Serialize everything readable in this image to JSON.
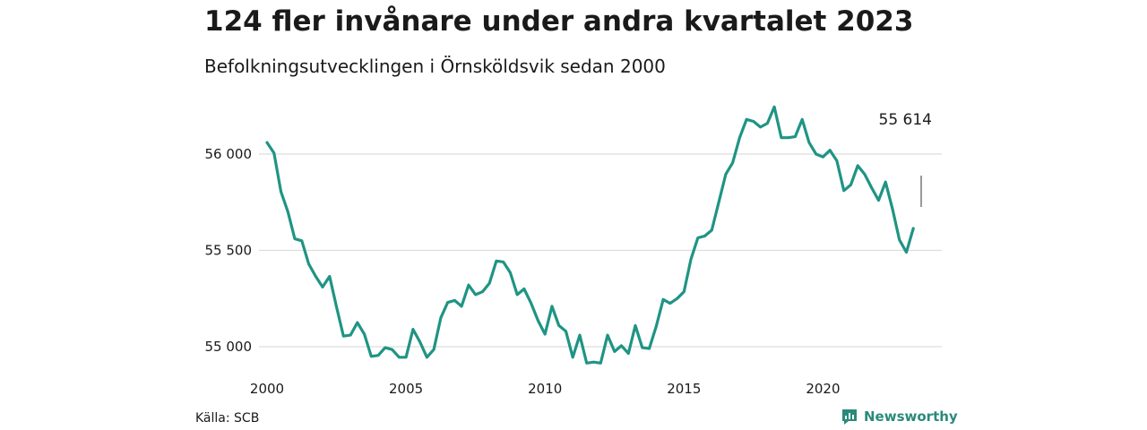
{
  "header": {
    "title": "124 fler invånare under andra kvartalet 2023",
    "subtitle": "Befolkningsutvecklingen i Örnsköldsvik sedan 2000"
  },
  "footer": {
    "source": "Källa: SCB",
    "brand": "Newsworthy"
  },
  "colors": {
    "line": "#1f9484",
    "grid": "#dddddd",
    "brand": "#2a8a7a"
  },
  "icons": {
    "brand": "newsworthy-logo-icon"
  },
  "chart_data": {
    "type": "line",
    "title": "124 fler invånare under andra kvartalet 2023",
    "subtitle": "Befolkningsutvecklingen i Örnsköldsvik sedan 2000",
    "xlabel": "",
    "ylabel": "",
    "xlim": [
      2000,
      2023.5
    ],
    "ylim": [
      54900,
      56250
    ],
    "y_ticks": [
      55000,
      55500,
      56000
    ],
    "y_tick_labels": [
      "55 000",
      "55 500",
      "56 000"
    ],
    "x_ticks": [
      2000,
      2005,
      2010,
      2015,
      2020
    ],
    "x_tick_labels": [
      "2000",
      "2005",
      "2010",
      "2015",
      "2020"
    ],
    "grid": "horizontal",
    "legend": "none",
    "last_value_label": "55 614",
    "series": [
      {
        "x": [
          2000.0,
          2000.25,
          2000.5,
          2000.75,
          2001.0,
          2001.25,
          2001.5,
          2001.75,
          2002.0,
          2002.25,
          2002.5,
          2002.75,
          2003.0,
          2003.25,
          2003.5,
          2003.75,
          2004.0,
          2004.25,
          2004.5,
          2004.75,
          2005.0,
          2005.25,
          2005.5,
          2005.75,
          2006.0,
          2006.25,
          2006.5,
          2006.75,
          2007.0,
          2007.25,
          2007.5,
          2007.75,
          2008.0,
          2008.25,
          2008.5,
          2008.75,
          2009.0,
          2009.25,
          2009.5,
          2009.75,
          2010.0,
          2010.25,
          2010.5,
          2010.75,
          2011.0,
          2011.25,
          2011.5,
          2011.75,
          2012.0,
          2012.25,
          2012.5,
          2012.75,
          2013.0,
          2013.25,
          2013.5,
          2013.75,
          2014.0,
          2014.25,
          2014.5,
          2014.75,
          2015.0,
          2015.25,
          2015.5,
          2015.75,
          2016.0,
          2016.25,
          2016.5,
          2016.75,
          2017.0,
          2017.25,
          2017.5,
          2017.75,
          2018.0,
          2018.25,
          2018.5,
          2018.75,
          2019.0,
          2019.25,
          2019.5,
          2019.75,
          2020.0,
          2020.25,
          2020.5,
          2020.75,
          2021.0,
          2021.25,
          2021.5,
          2021.75,
          2022.0,
          2022.25,
          2022.5,
          2022.75,
          2023.0,
          2023.25
        ],
        "values": [
          56060,
          56005,
          55805,
          55700,
          55560,
          55550,
          55430,
          55365,
          55310,
          55365,
          55205,
          55055,
          55060,
          55125,
          55065,
          54950,
          54955,
          54995,
          54985,
          54945,
          54945,
          55090,
          55025,
          54945,
          54985,
          55150,
          55230,
          55240,
          55210,
          55320,
          55270,
          55285,
          55330,
          55445,
          55440,
          55385,
          55270,
          55300,
          55225,
          55135,
          55065,
          55210,
          55110,
          55080,
          54945,
          55060,
          54915,
          54920,
          54915,
          55060,
          54975,
          55005,
          54965,
          55110,
          54995,
          54990,
          55105,
          55245,
          55225,
          55250,
          55285,
          55455,
          55565,
          55575,
          55605,
          55750,
          55895,
          55955,
          56085,
          56180,
          56170,
          56140,
          56160,
          56245,
          56085,
          56085,
          56090,
          56180,
          56060,
          56000,
          55985,
          56020,
          55965,
          55810,
          55840,
          55940,
          55895,
          55825,
          55760,
          55855,
          55715,
          55555,
          55490,
          55614
        ]
      }
    ]
  }
}
